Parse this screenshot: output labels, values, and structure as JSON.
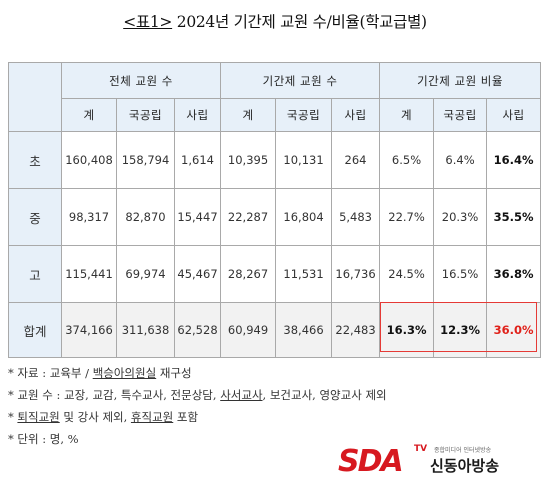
{
  "title": {
    "prefix": "<표1>",
    "text": " 2024년 기간제 교원 수/비율(학교급별)"
  },
  "table": {
    "group_headers": [
      "전체 교원 수",
      "기간제 교원 수",
      "기간제 교원 비율"
    ],
    "sub_headers": [
      "계",
      "국공립",
      "사립",
      "계",
      "국공립",
      "사립",
      "계",
      "국공립",
      "사립"
    ],
    "rows": [
      {
        "label": "초",
        "values": [
          "160,408",
          "158,794",
          "1,614",
          "10,395",
          "10,131",
          "264",
          "6.5%",
          "6.4%",
          "16.4%"
        ]
      },
      {
        "label": "중",
        "values": [
          "98,317",
          "82,870",
          "15,447",
          "22,287",
          "16,804",
          "5,483",
          "22.7%",
          "20.3%",
          "35.5%"
        ]
      },
      {
        "label": "고",
        "values": [
          "115,441",
          "69,974",
          "45,467",
          "28,267",
          "11,531",
          "16,736",
          "24.5%",
          "16.5%",
          "36.8%"
        ]
      },
      {
        "label": "합계",
        "values": [
          "374,166",
          "311,638",
          "62,528",
          "60,949",
          "38,466",
          "22,483",
          "16.3%",
          "12.3%",
          "36.0%"
        ]
      }
    ]
  },
  "notes": {
    "n1_prefix": "* 자료 : 교육부 / ",
    "n1_underlined": "백승아의원실",
    "n1_suffix": " 재구성",
    "n2_prefix": "* 교원 수 : 교장, 교감, 특수교사, 전문상담, ",
    "n2_u1": "사서교사",
    "n2_mid": ", 보건교사, 영양교사 제외",
    "n3_prefix": "* ",
    "n3_u1": "퇴직교원",
    "n3_mid": " 및 강사 제외, ",
    "n3_u2": "휴직교원",
    "n3_suffix": " 포함",
    "n4": "* 단위 : 명, %"
  },
  "logo": {
    "mark": "SDA",
    "tv": "TV",
    "tagline": "종합미디어 인터넷방송",
    "name": "신동아방송"
  },
  "colors": {
    "header_bg": "#e7f0f9",
    "total_bg": "#f2f2f2",
    "highlight_border": "#e53a36",
    "highlight_text": "#e0211a",
    "brand_red": "#d71920"
  }
}
